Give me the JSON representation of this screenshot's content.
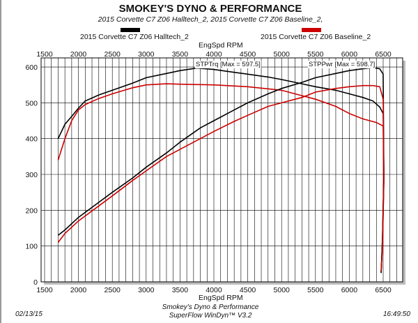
{
  "header": {
    "title": "SMOKEY'S DYNO & PERFORMANCE",
    "subtitle": "2015 Corvette C7 Z06 Halltech_2, 2015 Corvette C7 Z06 Baseline_2,"
  },
  "footer": {
    "date": "02/13/15",
    "line1": "Smokey's Dyno & Performance",
    "line2": "SuperFlow WinDyn™ V3.2",
    "time": "16:49:50"
  },
  "chart_data": {
    "type": "line",
    "xlabel": "EngSpd RPM",
    "xlim": [
      1500,
      6700
    ],
    "ylim": [
      0,
      620
    ],
    "xticks": [
      1500,
      2000,
      2500,
      3000,
      3500,
      4000,
      4500,
      5000,
      5500,
      6000,
      6500
    ],
    "yticks": [
      0,
      100,
      200,
      300,
      400,
      500,
      600
    ],
    "grid": true,
    "legend": [
      {
        "name": "2015 Corvette C7 Z06 Halltech_2",
        "color": "#000000"
      },
      {
        "name": "2015 Corvette C7 Z06 Baseline_2",
        "color": "#cc0000"
      }
    ],
    "annotations": [
      "STPTrq [Max = 597.5]",
      "STPPwr [Max = 598.7]"
    ],
    "series": [
      {
        "name": "2015 Corvette C7 Z06 Halltech_2",
        "quantity": "STPTrq",
        "color": "#000000",
        "x": [
          1700,
          1800,
          1900,
          2000,
          2100,
          2300,
          2500,
          2800,
          3000,
          3300,
          3500,
          3750,
          4000,
          4300,
          4500,
          4800,
          5000,
          5300,
          5500,
          5800,
          6000,
          6200,
          6350,
          6450,
          6500,
          6510,
          6490,
          6470
        ],
        "y": [
          400,
          440,
          462,
          485,
          505,
          522,
          535,
          555,
          570,
          582,
          590,
          597,
          593,
          585,
          580,
          572,
          565,
          553,
          545,
          535,
          525,
          515,
          505,
          488,
          470,
          300,
          120,
          25
        ]
      },
      {
        "name": "2015 Corvette C7 Z06 Baseline_2",
        "quantity": "STPTrq",
        "color": "#cc0000",
        "x": [
          1700,
          1800,
          1900,
          2000,
          2100,
          2300,
          2500,
          2800,
          3000,
          3300,
          3500,
          4000,
          4500,
          5000,
          5300,
          5500,
          5800,
          6000,
          6200,
          6400,
          6500,
          6510,
          6490,
          6470
        ],
        "y": [
          340,
          400,
          450,
          480,
          495,
          512,
          525,
          542,
          550,
          553,
          552,
          550,
          545,
          535,
          520,
          510,
          490,
          470,
          455,
          445,
          435,
          280,
          100,
          30
        ]
      },
      {
        "name": "2015 Corvette C7 Z06 Halltech_2",
        "quantity": "STPPwr",
        "color": "#000000",
        "x": [
          1700,
          1800,
          2000,
          2300,
          2500,
          2800,
          3000,
          3300,
          3500,
          3800,
          4000,
          4300,
          4500,
          4800,
          5000,
          5300,
          5500,
          5800,
          6000,
          6200,
          6350,
          6450,
          6500,
          6510,
          6490,
          6470
        ],
        "y": [
          130,
          145,
          180,
          222,
          250,
          290,
          320,
          360,
          390,
          430,
          450,
          480,
          500,
          525,
          540,
          557,
          570,
          582,
          590,
          595,
          598,
          595,
          580,
          300,
          120,
          25
        ]
      },
      {
        "name": "2015 Corvette C7 Z06 Baseline_2",
        "quantity": "STPPwr",
        "color": "#cc0000",
        "x": [
          1700,
          1800,
          2000,
          2300,
          2500,
          2800,
          3000,
          3300,
          3500,
          3800,
          4000,
          4300,
          4500,
          4800,
          5000,
          5300,
          5500,
          5800,
          6000,
          6200,
          6350,
          6450,
          6500,
          6510,
          6490,
          6470
        ],
        "y": [
          110,
          135,
          170,
          212,
          240,
          283,
          310,
          350,
          370,
          400,
          420,
          448,
          465,
          490,
          500,
          515,
          530,
          540,
          545,
          548,
          548,
          545,
          510,
          280,
          100,
          30
        ]
      }
    ]
  }
}
